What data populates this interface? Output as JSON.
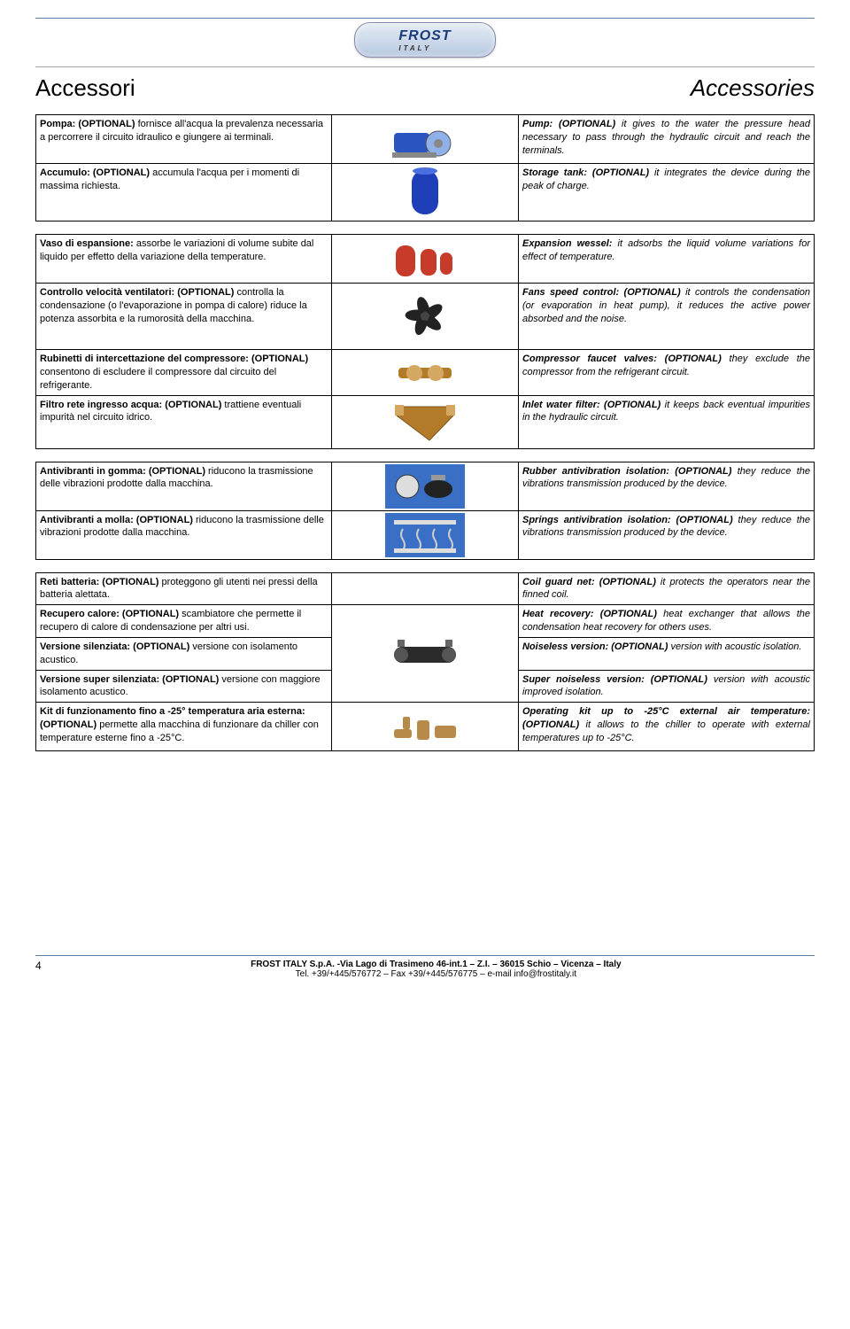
{
  "logo": {
    "brand": "FROST",
    "sub": "ITALY"
  },
  "title_left": "Accessori",
  "title_right": "Accessories",
  "groups": [
    {
      "rows": [
        {
          "it_bold": "Pompa: (OPTIONAL)",
          "it_text": " fornisce all'acqua la prevalenza necessaria a percorrere il circuito idraulico e giungere ai terminali.",
          "en_bold": "Pump: (OPTIONAL)",
          "en_text": " it gives to the water the pressure head necessary to pass through the hydraulic circuit and reach the terminals.",
          "thumb": "pump"
        },
        {
          "it_bold": "Accumulo: (OPTIONAL)",
          "it_text": " accumula l'acqua per i momenti di massima richiesta.",
          "en_bold": "Storage tank: (OPTIONAL)",
          "en_text": " it integrates the device during the peak of charge.",
          "thumb": "tank"
        }
      ]
    },
    {
      "rows": [
        {
          "it_bold": "Vaso di espansione:",
          "it_text": " assorbe le variazioni di volume subite dal liquido per effetto della variazione della temperature.",
          "en_bold": "Expansion wessel:",
          "en_text": " it adsorbs the liquid volume variations for effect of temperature.",
          "thumb": "exp"
        },
        {
          "it_bold": "Controllo velocità ventilatori: (OPTIONAL)",
          "it_text": " controlla la condensazione (o l'evaporazione in pompa di calore) riduce la potenza assorbita e la rumorosità della macchina.",
          "en_bold": "Fans speed control: (OPTIONAL)",
          "en_text": " it controls the condensation (or evaporation in heat pump), it reduces the active power absorbed and the noise.",
          "thumb": "fan"
        },
        {
          "it_bold": "Rubinetti di intercettazione del compressore: (OPTIONAL)",
          "it_text": " consentono di escludere il compressore dal circuito del refrigerante.",
          "en_bold": "Compressor faucet valves: (OPTIONAL)",
          "en_text": " they exclude the compressor from the refrigerant circuit.",
          "thumb": "valve"
        },
        {
          "it_bold": "Filtro rete ingresso acqua: (OPTIONAL)",
          "it_text": " trattiene eventuali impurità nel circuito idrico.",
          "en_bold": "Inlet water filter: (OPTIONAL)",
          "en_text": " it keeps back eventual impurities in the hydraulic circuit.",
          "thumb": "filter"
        }
      ]
    },
    {
      "rows": [
        {
          "it_bold": "Antivibranti in gomma: (OPTIONAL)",
          "it_text": " riducono la trasmissione delle vibrazioni prodotte dalla macchina.",
          "en_bold": "Rubber antivibration isolation: (OPTIONAL)",
          "en_text": " they reduce the vibrations transmission produced by the device.",
          "thumb": "rubber"
        },
        {
          "it_bold": "Antivibranti a molla: (OPTIONAL)",
          "it_text": " riducono la trasmissione delle vibrazioni prodotte dalla macchina.",
          "en_bold": "Springs antivibration isolation: (OPTIONAL)",
          "en_text": " they reduce the vibrations transmission produced by the device.",
          "thumb": "spring"
        }
      ]
    },
    {
      "rows": [
        {
          "it_bold": "Reti batteria: (OPTIONAL)",
          "it_text": " proteggono gli utenti nei pressi della batteria alettata.",
          "en_bold": "Coil guard net: (OPTIONAL)",
          "en_text": " it protects the operators near the finned coil.",
          "thumb": ""
        },
        {
          "it_bold": "Recupero calore: (OPTIONAL)",
          "it_text": " scambiatore che permette il recupero di calore di condensazione per altri usi.",
          "en_bold": "Heat recovery: (OPTIONAL)",
          "en_text": " heat exchanger that allows the condensation heat recovery for others uses.",
          "thumb": "heat"
        },
        {
          "it_bold": "Versione silenziata: (OPTIONAL)",
          "it_text": " versione con isolamento acustico.",
          "en_bold": "Noiseless version: (OPTIONAL)",
          "en_text": " version with acoustic isolation.",
          "thumb": ""
        },
        {
          "it_bold": "Versione super silenziata: (OPTIONAL)",
          "it_text": " versione con maggiore isolamento acustico.",
          "en_bold": "Super noiseless version: (OPTIONAL)",
          "en_text": " version with acoustic improved isolation.",
          "thumb": ""
        },
        {
          "it_bold": "Kit di funzionamento fino a -25° temperatura aria esterna: (OPTIONAL)",
          "it_text": " permette alla macchina di funzionare da chiller con temperature esterne fino a -25°C.",
          "en_bold": "Operating kit up to -25°C external air temperature: (OPTIONAL)",
          "en_text": " it allows to the chiller to operate with external temperatures up to -25°C.",
          "thumb": "kit"
        }
      ]
    }
  ],
  "footer": {
    "page": "4",
    "line1": "FROST ITALY S.p.A. -Via Lago di Trasimeno 46-int.1 – Z.I. – 36015 Schio – Vicenza – Italy",
    "line2": "Tel. +39/+445/576772 – Fax +39/+445/576775 – e-mail info@frostitaly.it"
  },
  "thumb_colors": {
    "pump_body": "#2a55c0",
    "pump_light": "#8fb0e8",
    "tank": "#1f3fb8",
    "exp": "#c63b2a",
    "fan": "#222222",
    "valve": "#b37a2a",
    "filter": "#b37a2a",
    "rubber_bg": "#3a6fc6",
    "spring_bg": "#3a6fc6",
    "heat": "#2b2b2b",
    "kit": "#b88a4a"
  }
}
